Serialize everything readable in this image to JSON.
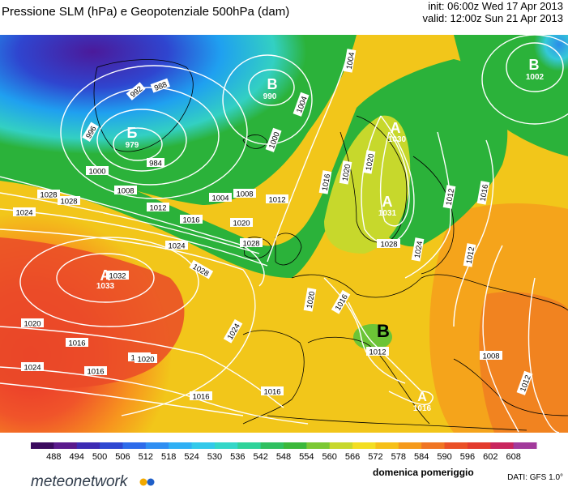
{
  "header": {
    "title": "Pressione SLM (hPa) e Geopotenziale 500hPa (dam)",
    "init": "init: 06:00z Wed 17 Apr 2013",
    "valid": "valid: 12:00z Sun 21 Apr 2013"
  },
  "map": {
    "pressure_centers": [
      {
        "letter": "Б",
        "value": "979"
      },
      {
        "letter": "B",
        "value": "990"
      },
      {
        "letter": "B",
        "value": "1002"
      },
      {
        "letter": "A",
        "value": "1030"
      },
      {
        "letter": "A",
        "value": "1031"
      },
      {
        "letter": "A",
        "value": "1033"
      },
      {
        "letter": "B",
        "value": ""
      },
      {
        "letter": "A",
        "value": "1016"
      }
    ],
    "isobar_labels": [
      "992",
      "988",
      "996",
      "1000",
      "984",
      "1000",
      "1004",
      "1008",
      "1012",
      "1016",
      "1020",
      "1024",
      "1028",
      "1032",
      "1028",
      "1024",
      "1020",
      "1016",
      "1016",
      "1016",
      "1008",
      "1004",
      "1012",
      "1016",
      "1020",
      "1024",
      "1028",
      "1020",
      "1028",
      "1024",
      "1012",
      "1008",
      "1016",
      "1012",
      "1020",
      "1016",
      "1012",
      "1028",
      "1024",
      "1016",
      "1012",
      "1004",
      "1016",
      "1020",
      "1024"
    ],
    "colors": {
      "cold": "#4b1a9b",
      "cool": "#1fa0f0",
      "mid": "#2bb23a",
      "warm": "#f2d21a",
      "hot": "#f0542a"
    }
  },
  "colorbar": {
    "ticks": [
      "488",
      "494",
      "500",
      "506",
      "512",
      "518",
      "524",
      "530",
      "536",
      "542",
      "548",
      "554",
      "560",
      "566",
      "572",
      "578",
      "584",
      "590",
      "596",
      "602",
      "608"
    ],
    "colors": [
      "#3b0a5e",
      "#5a1a8c",
      "#3d2bb3",
      "#2e47d1",
      "#2d6bea",
      "#2f8ef2",
      "#30b0f4",
      "#33c9ea",
      "#34d7c8",
      "#2fd39a",
      "#30c060",
      "#3bb83a",
      "#7cc833",
      "#c7d82c",
      "#f3de22",
      "#f6c018",
      "#f59a1b",
      "#f07523",
      "#ea5027",
      "#e33b2d",
      "#c9255d",
      "#a23a9b"
    ]
  },
  "footer": {
    "subtitle": "domenica pomeriggio",
    "data_source": "DATI: GFS 1.0°",
    "brand": "meteonetwork"
  }
}
